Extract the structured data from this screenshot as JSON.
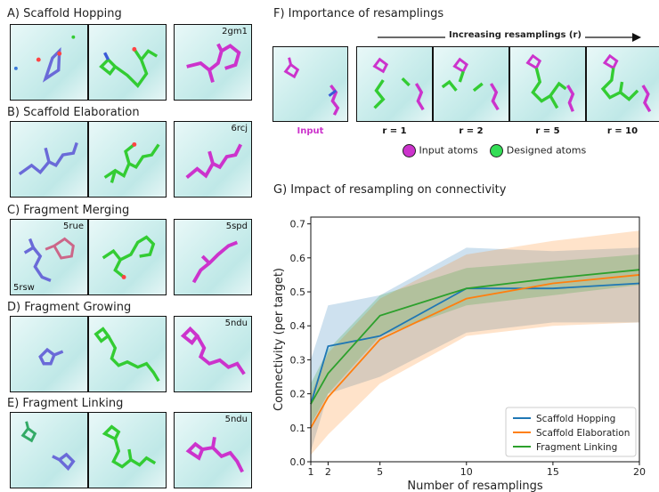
{
  "panels": {
    "A": {
      "title": "A) Scaffold Hopping",
      "pdb": "2gm1"
    },
    "B": {
      "title": "B) Scaffold Elaboration",
      "pdb": "6rcj"
    },
    "C": {
      "title": "C) Fragment Merging",
      "pdb": "5spd",
      "label_a": "5rue",
      "label_b": "5rsw"
    },
    "D": {
      "title": "D) Fragment Growing",
      "pdb": "5ndu"
    },
    "E": {
      "title": "E) Fragment Linking",
      "pdb": "5ndu"
    },
    "F": {
      "title": "F) Importance of resamplings",
      "arrow_label": "Increasing resamplings (r)",
      "input_label": "Input",
      "r_labels": [
        "r = 1",
        "r = 2",
        "r = 5",
        "r = 10"
      ],
      "legend": {
        "input": "Input atoms",
        "designed": "Designed atoms"
      }
    },
    "G": {
      "title": "G) Impact of resampling on connectivity"
    }
  },
  "colors": {
    "input": "#cc33cc",
    "designed": "#33cc33",
    "fragment": "#6a6ad8",
    "blue": "#1f77b4",
    "orange": "#ff7f0e",
    "green": "#2ca02c"
  },
  "chart_data": {
    "type": "line",
    "xlabel": "Number of resamplings",
    "ylabel": "Connectivity (per target)",
    "xlim": [
      1,
      20
    ],
    "ylim": [
      0,
      0.72
    ],
    "xticks": [
      1,
      2,
      5,
      10,
      15,
      20
    ],
    "yticks": [
      0.0,
      0.1,
      0.2,
      0.3,
      0.4,
      0.5,
      0.6,
      0.7
    ],
    "legend_position": "lower-right",
    "series": [
      {
        "name": "Scaffold Hopping",
        "color": "#1f77b4",
        "x": [
          1,
          2,
          5,
          10,
          15,
          20
        ],
        "y": [
          0.17,
          0.34,
          0.37,
          0.51,
          0.51,
          0.525
        ],
        "lower": [
          0.03,
          0.2,
          0.25,
          0.38,
          0.41,
          0.41
        ],
        "upper": [
          0.3,
          0.46,
          0.49,
          0.63,
          0.62,
          0.63
        ]
      },
      {
        "name": "Scaffold Elaboration",
        "color": "#ff7f0e",
        "x": [
          1,
          2,
          5,
          10,
          15,
          20
        ],
        "y": [
          0.1,
          0.19,
          0.36,
          0.48,
          0.525,
          0.55
        ],
        "lower": [
          0.02,
          0.08,
          0.23,
          0.37,
          0.4,
          0.41
        ],
        "upper": [
          0.2,
          0.32,
          0.48,
          0.61,
          0.65,
          0.68
        ]
      },
      {
        "name": "Fragment Linking",
        "color": "#2ca02c",
        "x": [
          1,
          2,
          5,
          10,
          15,
          20
        ],
        "y": [
          0.17,
          0.26,
          0.43,
          0.51,
          0.54,
          0.565
        ],
        "lower": [
          0.11,
          0.2,
          0.37,
          0.46,
          0.49,
          0.52
        ],
        "upper": [
          0.23,
          0.33,
          0.49,
          0.57,
          0.59,
          0.61
        ]
      }
    ]
  }
}
